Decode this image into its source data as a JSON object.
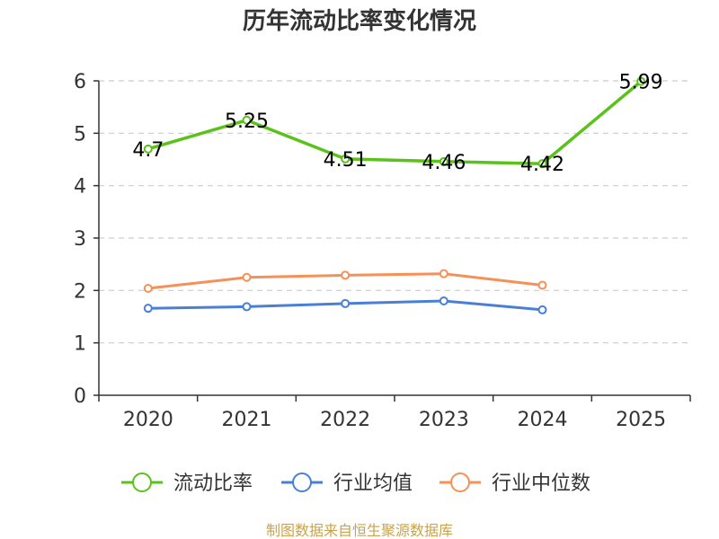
{
  "chart_data": {
    "type": "line",
    "title": "历年流动比率变化情况",
    "categories": [
      "2020",
      "2021",
      "2022",
      "2023",
      "2024",
      "2025"
    ],
    "yticks": [
      "0",
      "1",
      "2",
      "3",
      "4",
      "5",
      "6"
    ],
    "ylim": [
      0,
      6
    ],
    "grid": true,
    "legend_position": "bottom",
    "series": [
      {
        "name": "流动比率",
        "color": "#5ac21a",
        "values": [
          4.7,
          5.25,
          4.51,
          4.46,
          4.42,
          5.99
        ],
        "labels": [
          "4.7",
          "5.25",
          "4.51",
          "4.46",
          "4.42",
          "5.99"
        ]
      },
      {
        "name": "行业均值",
        "color": "#4a7fd6",
        "values": [
          1.66,
          1.69,
          1.75,
          1.8,
          1.63,
          null
        ]
      },
      {
        "name": "行业中位数",
        "color": "#f59058",
        "values": [
          2.04,
          2.25,
          2.29,
          2.32,
          2.1,
          null
        ]
      }
    ],
    "footer": "制图数据来自恒生聚源数据库"
  }
}
